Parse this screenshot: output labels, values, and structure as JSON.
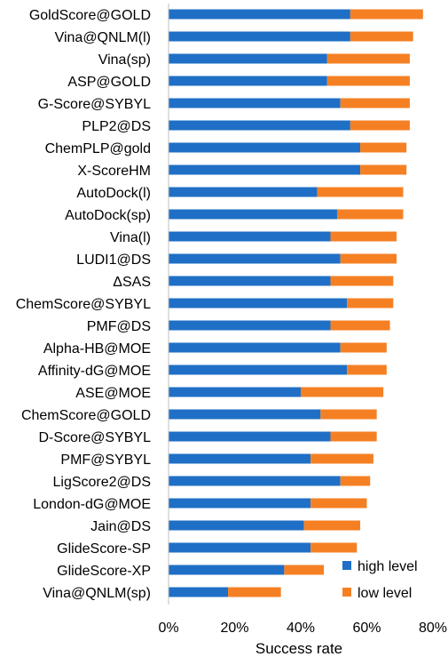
{
  "chart_data": {
    "type": "bar",
    "orientation": "horizontal",
    "stacked": true,
    "categories": [
      "GoldScore@GOLD",
      "Vina@QNLM(l)",
      "Vina(sp)",
      "ASP@GOLD",
      "G-Score@SYBYL",
      "PLP2@DS",
      "ChemPLP@gold",
      "X-ScoreHM",
      "AutoDock(l)",
      "AutoDock(sp)",
      "Vina(l)",
      "LUDI1@DS",
      "ΔSAS",
      "ChemScore@SYBYL",
      "PMF@DS",
      "Alpha-HB@MOE",
      "Affinity-dG@MOE",
      "ASE@MOE",
      "ChemScore@GOLD",
      "D-Score@SYBYL",
      "PMF@SYBYL",
      "LigScore2@DS",
      "London-dG@MOE",
      "Jain@DS",
      "GlideScore-SP",
      "GlideScore-XP",
      "Vina@QNLM(sp)"
    ],
    "series": [
      {
        "name": "high level",
        "color": "#1f6fc6",
        "values": [
          55,
          55,
          48,
          48,
          52,
          55,
          58,
          58,
          45,
          51,
          49,
          52,
          49,
          54,
          49,
          52,
          54,
          40,
          46,
          49,
          43,
          52,
          43,
          41,
          43,
          35,
          18
        ]
      },
      {
        "name": "low level",
        "color": "#f58024",
        "values": [
          22,
          19,
          25,
          25,
          21,
          18,
          14,
          14,
          26,
          20,
          20,
          17,
          19,
          14,
          18,
          14,
          12,
          25,
          17,
          14,
          19,
          9,
          17,
          17,
          14,
          12,
          16
        ]
      }
    ],
    "xlabel": "Success rate",
    "ylabel": "",
    "xlim": [
      0,
      80
    ],
    "xticks": [
      "0%",
      "20%",
      "40%",
      "60%",
      "80%"
    ],
    "grid": false,
    "legend_position": "bottom-right"
  }
}
